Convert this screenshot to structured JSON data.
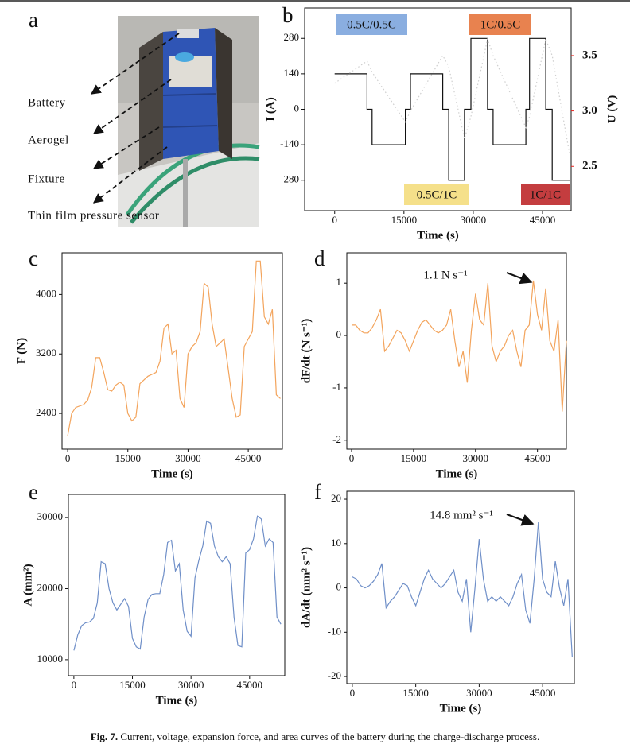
{
  "panel_a": {
    "labels": [
      "Battery",
      "Aerogel",
      "Fixture",
      "Thin film pressure sensor"
    ]
  },
  "panel_letters": [
    "a",
    "b",
    "c",
    "d",
    "e",
    "f"
  ],
  "caption": {
    "label": "Fig. 7.",
    "text": "Current, voltage, expansion force, and area curves of the battery during the charge-discharge process."
  },
  "chart_data": [
    {
      "type": "line",
      "xlabel": "Time (s)",
      "ylabel": "I (A)",
      "y2label": "U (V)",
      "xlim": [
        -6500,
        51200
      ],
      "xticks": [
        0,
        15000,
        30000,
        45000
      ],
      "ylim": [
        -400,
        400
      ],
      "yticks": [
        -280,
        -140,
        0,
        140,
        280
      ],
      "y2lim": [
        2.1,
        3.93
      ],
      "y2ticks": [
        2.5,
        {
          "value": 3,
          "label": "3.0"
        },
        3.5
      ],
      "y2color": "#e8231e",
      "annotations": [
        {
          "text": "0.5C/0.5C",
          "color": "#8aaee0"
        },
        {
          "text": "1C/0.5C",
          "color": "#e8824f"
        },
        {
          "text": "0.5C/1C",
          "color": "#f5e08a"
        },
        {
          "text": "1C/1C",
          "color": "#c43d3f"
        }
      ],
      "series": [
        {
          "color": "#111111",
          "x": [
            0,
            7000,
            7000,
            8100,
            8100,
            15300,
            15300,
            16400,
            16400,
            23400,
            23400,
            24700,
            24700,
            28100,
            28100,
            29500,
            29500,
            33100,
            33100,
            34300,
            34300,
            41400,
            41400,
            42200,
            42200,
            45700,
            45700,
            47100,
            47100,
            50900
          ],
          "values": [
            140,
            140,
            0,
            0,
            -140,
            -140,
            0,
            0,
            140,
            140,
            0,
            0,
            -280,
            -280,
            0,
            0,
            280,
            280,
            0,
            0,
            -140,
            -140,
            0,
            0,
            280,
            280,
            0,
            0,
            -280,
            -280
          ]
        },
        {
          "color": "#cfcfcf",
          "axis": "y2",
          "x": [
            0,
            7000,
            8100,
            15300,
            16400,
            23400,
            24700,
            28100,
            29500,
            33100,
            34300,
            41400,
            42200,
            45700,
            47100,
            50900
          ],
          "values": [
            3.25,
            3.45,
            3.35,
            2.9,
            3.0,
            3.5,
            3.4,
            2.75,
            2.95,
            3.65,
            3.5,
            2.85,
            2.95,
            3.65,
            3.5,
            2.6
          ]
        }
      ]
    },
    {
      "type": "line",
      "xlabel": "Time (s)",
      "ylabel": "F (N)",
      "color": "#f3a45c",
      "xlim": [
        -1400,
        53500
      ],
      "xticks": [
        0,
        15000,
        30000,
        45000
      ],
      "ylim": [
        1920,
        4560
      ],
      "yticks": [
        2400,
        3200,
        4000
      ],
      "x": [
        0,
        1000,
        2000,
        4000,
        5000,
        6000,
        7000,
        8000,
        9000,
        10000,
        11000,
        12000,
        13000,
        14000,
        15000,
        16000,
        17000,
        18000,
        20000,
        22000,
        23000,
        24000,
        25000,
        26000,
        27000,
        28000,
        29000,
        30000,
        31000,
        32000,
        33000,
        34000,
        35000,
        36000,
        37000,
        38000,
        39000,
        40000,
        41000,
        42000,
        43000,
        44000,
        45000,
        46000,
        47000,
        48000,
        49000,
        50000,
        51000,
        52000,
        53000
      ],
      "values": [
        2100,
        2400,
        2480,
        2520,
        2580,
        2750,
        3150,
        3150,
        2950,
        2720,
        2700,
        2780,
        2820,
        2780,
        2400,
        2300,
        2350,
        2800,
        2900,
        2950,
        3100,
        3550,
        3600,
        3200,
        3250,
        2600,
        2480,
        3200,
        3300,
        3350,
        3500,
        4150,
        4100,
        3600,
        3300,
        3350,
        3400,
        3000,
        2600,
        2350,
        2380,
        3300,
        3400,
        3500,
        4450,
        4450,
        3700,
        3600,
        3800,
        2650,
        2600
      ]
    },
    {
      "type": "line",
      "xlabel": "Time (s)",
      "ylabel": "dF/dt (N s⁻¹)",
      "color": "#f3a45c",
      "annotation": "1.1 N s⁻¹",
      "xlim": [
        -1150,
        52000
      ],
      "xticks": [
        0,
        15000,
        30000,
        45000
      ],
      "ylim": [
        -2.17,
        1.58
      ],
      "yticks": [
        -2,
        -1,
        0,
        1
      ],
      "x": [
        0,
        1000,
        2000,
        3000,
        4000,
        5000,
        6000,
        7000,
        8000,
        9000,
        10000,
        11000,
        12000,
        13000,
        14000,
        15000,
        16000,
        17000,
        18000,
        19000,
        20000,
        21000,
        22000,
        23000,
        24000,
        25000,
        26000,
        27000,
        28000,
        29000,
        30000,
        31000,
        32000,
        33000,
        34000,
        35000,
        36000,
        37000,
        38000,
        39000,
        40000,
        41000,
        42000,
        43000,
        44000,
        45000,
        46000,
        47000,
        48000,
        49000,
        50000,
        51000,
        52000
      ],
      "values": [
        0.2,
        0.2,
        0.1,
        0.05,
        0.05,
        0.15,
        0.3,
        0.5,
        -0.3,
        -0.2,
        -0.05,
        0.1,
        0.05,
        -0.1,
        -0.3,
        -0.1,
        0.1,
        0.25,
        0.3,
        0.2,
        0.1,
        0.05,
        0.1,
        0.2,
        0.5,
        -0.1,
        -0.6,
        -0.3,
        -0.9,
        0.1,
        0.8,
        0.3,
        0.2,
        1.0,
        -0.2,
        -0.5,
        -0.3,
        -0.2,
        0,
        0.1,
        -0.3,
        -0.6,
        0.1,
        0.2,
        1.05,
        0.4,
        0.1,
        0.9,
        -0.1,
        -0.3,
        0.3,
        -1.45,
        -0.1
      ]
    },
    {
      "type": "line",
      "xlabel": "Time (s)",
      "ylabel": "A (mm²)",
      "color": "#6f8fc8",
      "xlim": [
        -1400,
        54000
      ],
      "xticks": [
        0,
        15000,
        30000,
        45000
      ],
      "ylim": [
        7750,
        33260
      ],
      "yticks": [
        10000,
        20000,
        30000
      ],
      "x": [
        0,
        1000,
        2000,
        3000,
        4000,
        5000,
        6000,
        7000,
        8000,
        9000,
        10000,
        11000,
        12000,
        13000,
        14000,
        15000,
        16000,
        17000,
        18000,
        19000,
        20000,
        21000,
        22000,
        23000,
        24000,
        25000,
        26000,
        27000,
        28000,
        29000,
        30000,
        31000,
        32000,
        33000,
        34000,
        35000,
        36000,
        37000,
        38000,
        39000,
        40000,
        41000,
        42000,
        43000,
        44000,
        45000,
        46000,
        47000,
        48000,
        49000,
        50000,
        51000,
        52000,
        53000
      ],
      "values": [
        11300,
        13500,
        14800,
        15200,
        15300,
        15800,
        18000,
        23800,
        23500,
        20000,
        18000,
        17000,
        17800,
        18600,
        17500,
        13000,
        11800,
        11500,
        16000,
        18500,
        19200,
        19300,
        19300,
        22000,
        26500,
        26800,
        22500,
        23500,
        17000,
        14000,
        13300,
        21500,
        24000,
        26000,
        29500,
        29200,
        26000,
        24500,
        23800,
        24500,
        23500,
        16000,
        12000,
        11800,
        25000,
        25500,
        27000,
        30200,
        29800,
        26000,
        27000,
        26500,
        16000,
        15000
      ]
    },
    {
      "type": "line",
      "xlabel": "Time (s)",
      "ylabel": "dA/dt (mm² s⁻¹)",
      "color": "#6f8fc8",
      "annotation": "14.8 mm² s⁻¹",
      "xlim": [
        -1300,
        52500
      ],
      "xticks": [
        0,
        15000,
        30000,
        45000
      ],
      "ylim": [
        -21.6,
        21.8
      ],
      "yticks": [
        -20,
        -10,
        0,
        10,
        20
      ],
      "x": [
        0,
        1000,
        2000,
        3000,
        4000,
        5000,
        6000,
        7000,
        8000,
        9000,
        10000,
        11000,
        12000,
        13000,
        14000,
        15000,
        16000,
        17000,
        18000,
        19000,
        20000,
        21000,
        22000,
        23000,
        24000,
        25000,
        26000,
        27000,
        28000,
        29000,
        30000,
        31000,
        32000,
        33000,
        34000,
        35000,
        36000,
        37000,
        38000,
        39000,
        40000,
        41000,
        42000,
        43000,
        44000,
        45000,
        46000,
        47000,
        48000,
        49000,
        50000,
        51000,
        52000
      ],
      "values": [
        2.5,
        2,
        0.5,
        0,
        0.5,
        1.5,
        3,
        5.5,
        -4.5,
        -3,
        -2,
        -0.5,
        1,
        0.5,
        -2,
        -4,
        -1,
        2,
        4,
        2,
        1,
        0,
        1,
        2.5,
        4,
        -1,
        -3,
        2,
        -10,
        0,
        11,
        2,
        -3,
        -2,
        -3,
        -2,
        -3,
        -4,
        -2,
        1,
        3,
        -5,
        -8,
        2,
        14.8,
        2,
        -1,
        -2,
        6,
        0,
        -4,
        2,
        -15.5
      ]
    }
  ]
}
